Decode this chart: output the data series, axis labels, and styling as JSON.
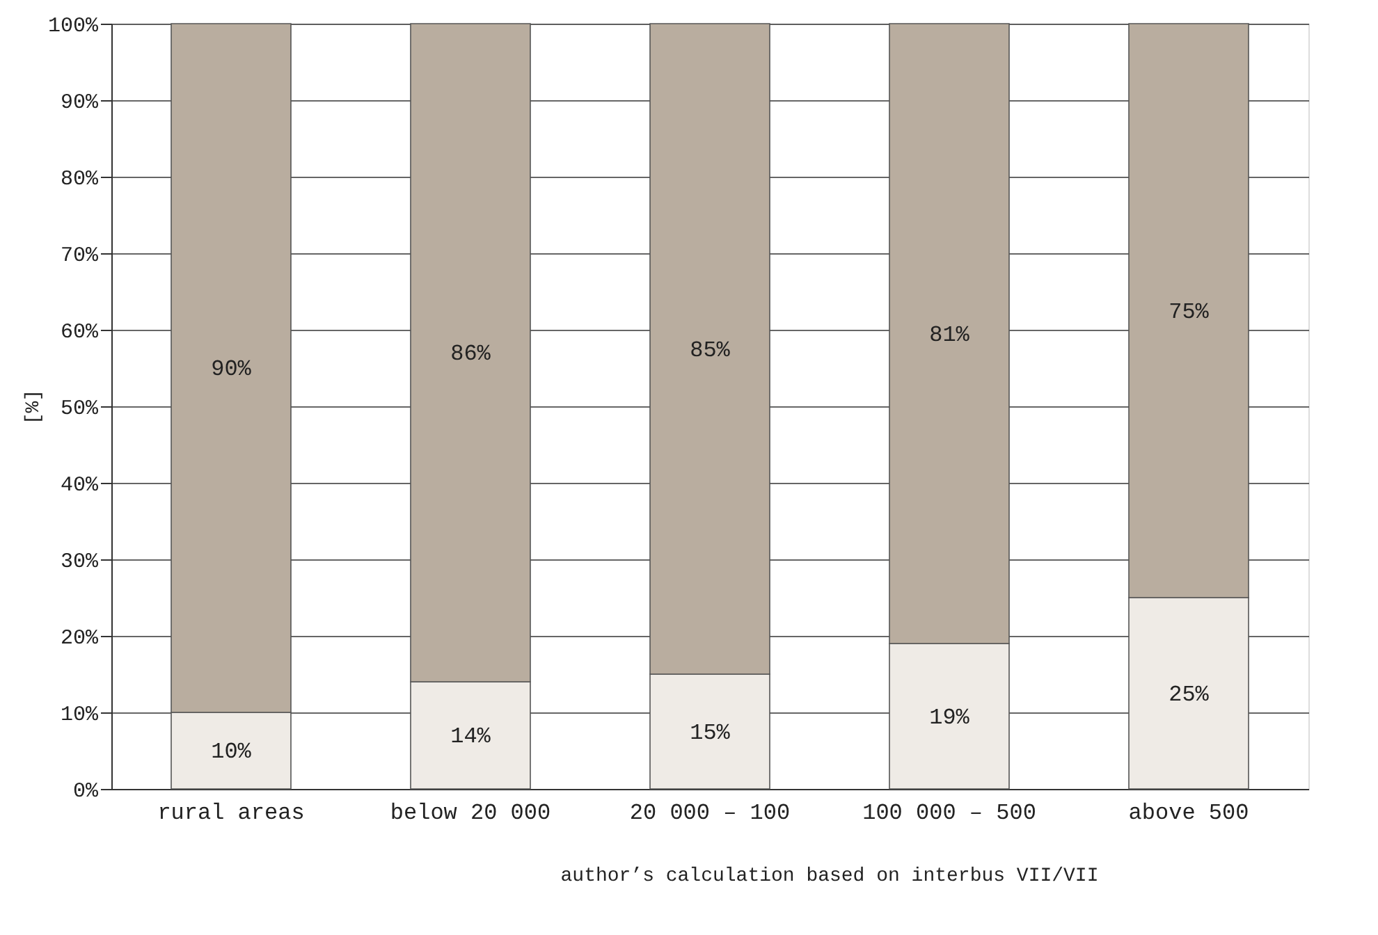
{
  "chart_data": {
    "type": "bar",
    "stacked": true,
    "ylabel": "[%]",
    "categories": [
      "rural areas",
      "below 20 000",
      "20 000 – 100",
      "100 000 – 500",
      "above 500"
    ],
    "series": [
      {
        "color": "#efebe6",
        "values": [
          10,
          14,
          15,
          19,
          25
        ],
        "value_labels": [
          "10%",
          "14%",
          "15%",
          "19%",
          "25%"
        ]
      },
      {
        "color": "#b9ad9f",
        "values": [
          90,
          86,
          85,
          81,
          75
        ],
        "value_labels": [
          "90%",
          "86%",
          "85%",
          "81%",
          "75%"
        ]
      }
    ],
    "ylim": [
      0,
      100
    ],
    "yticks": [
      {
        "value": 0,
        "label": "0%"
      },
      {
        "value": 10,
        "label": "10%"
      },
      {
        "value": 20,
        "label": "20%"
      },
      {
        "value": 30,
        "label": "30%"
      },
      {
        "value": 40,
        "label": "40%"
      },
      {
        "value": 50,
        "label": "50%"
      },
      {
        "value": 60,
        "label": "60%"
      },
      {
        "value": 70,
        "label": "70%"
      },
      {
        "value": 80,
        "label": "80%"
      },
      {
        "value": 90,
        "label": "90%"
      },
      {
        "value": 100,
        "label": "100%"
      }
    ],
    "grid": true,
    "annotations": [
      "author’s calculation based on interbus VII/VII"
    ]
  }
}
